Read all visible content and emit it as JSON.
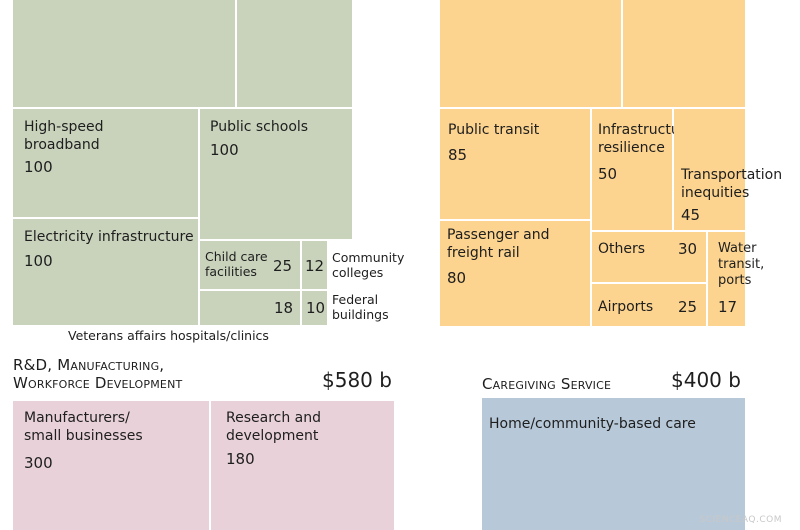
{
  "colors": {
    "green": "#c9d3bc",
    "orange": "#fcd48f",
    "pink": "#e8d1d9",
    "blue": "#b7c9d9"
  },
  "chart_data": [
    {
      "type": "treemap",
      "title": "",
      "items": [
        {
          "label": "High-speed broadband",
          "value": 100
        },
        {
          "label": "Public schools",
          "value": 100
        },
        {
          "label": "Electricity infrastructure",
          "value": 100
        },
        {
          "label": "Child care facilities",
          "value": 25
        },
        {
          "label": "Community colleges",
          "value": 12
        },
        {
          "label": "Veterans affairs hospitals/clinics",
          "value": 18
        },
        {
          "label": "Federal buildings",
          "value": 10
        }
      ]
    },
    {
      "type": "treemap",
      "title": "",
      "items": [
        {
          "label": "Public transit",
          "value": 85
        },
        {
          "label": "Infrastructure resilience",
          "value": 50
        },
        {
          "label": "Transportation inequities",
          "value": 45
        },
        {
          "label": "Passenger and freight rail",
          "value": 80
        },
        {
          "label": "Others",
          "value": 30
        },
        {
          "label": "Water transit, ports",
          "value": 17
        },
        {
          "label": "Airports",
          "value": 25
        }
      ]
    },
    {
      "type": "treemap",
      "title": "R&D, Manufacturing, Workforce Development",
      "total": "$580 b",
      "items": [
        {
          "label": "Manufacturers/ small businesses",
          "value": 300
        },
        {
          "label": "Research and development",
          "value": 180
        }
      ]
    },
    {
      "type": "treemap",
      "title": "Caregiving Service",
      "total": "$400 b",
      "items": [
        {
          "label": "Home/community-based care",
          "value": ""
        }
      ]
    }
  ],
  "credit": "SCIENCEAQ.COM"
}
